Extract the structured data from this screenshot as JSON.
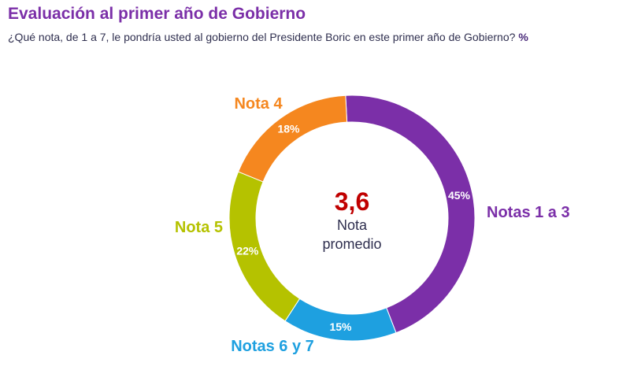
{
  "title": "Evaluación al primer año de Gobierno",
  "subtitle": "¿Qué nota, de 1 a 7, le pondría usted al gobierno del Presidente Boric en este primer año de Gobierno?",
  "unit": "%",
  "center": {
    "value": "3,6",
    "label_line1": "Nota",
    "label_line2": "promedio"
  },
  "chart_data": {
    "type": "pie",
    "variant": "donut",
    "title": "Evaluación al primer año de Gobierno",
    "unit": "%",
    "categories": [
      "Notas 1 a 3",
      "Notas 6 y 7",
      "Nota 5",
      "Nota 4"
    ],
    "values": [
      45,
      15,
      22,
      18
    ],
    "labels": [
      "45%",
      "15%",
      "22%",
      "18%"
    ],
    "colors": [
      "#7b2fa8",
      "#1ea0e0",
      "#b5c200",
      "#f5871f"
    ],
    "average": "3,6"
  }
}
